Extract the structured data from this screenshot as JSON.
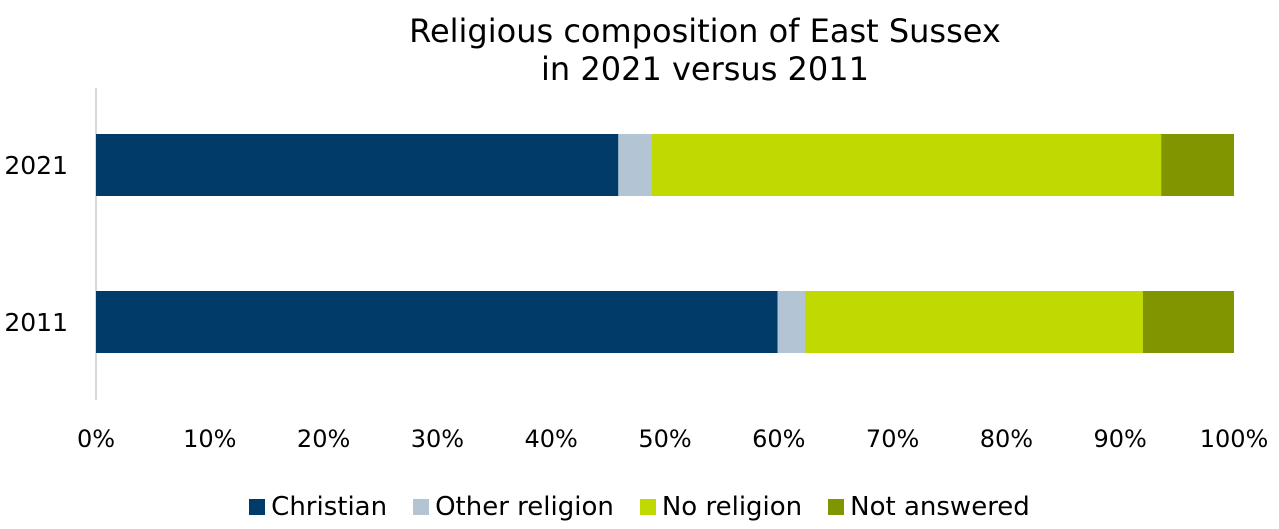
{
  "chart_data": {
    "type": "bar",
    "orientation": "horizontal",
    "stacked": true,
    "title_line1": "Religious composition of East Sussex",
    "title_line2": "in 2021 versus 2011",
    "categories": [
      "2021",
      "2011"
    ],
    "series": [
      {
        "name": "Christian",
        "color": "#003b6a",
        "values": [
          45.9,
          59.9
        ]
      },
      {
        "name": "Other religion",
        "color": "#b3c5d4",
        "values": [
          2.9,
          2.4
        ]
      },
      {
        "name": "No religion",
        "color": "#c0d900",
        "values": [
          44.8,
          29.7
        ]
      },
      {
        "name": "Not answered",
        "color": "#809500",
        "values": [
          6.4,
          8.0
        ]
      }
    ],
    "xlim": [
      0,
      100
    ],
    "xticks": [
      "0%",
      "10%",
      "20%",
      "30%",
      "40%",
      "50%",
      "60%",
      "70%",
      "80%",
      "90%",
      "100%"
    ],
    "grid": false,
    "legend_position": "bottom"
  }
}
